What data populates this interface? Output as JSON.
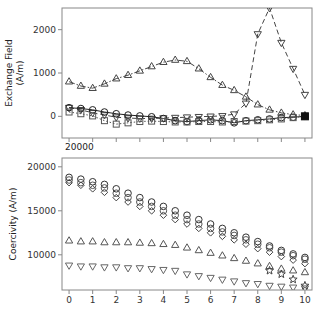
{
  "chart_data": [
    {
      "type": "line",
      "y_label": "Exchange Field\n(A/m)",
      "xlim": [
        -0.3,
        10.3
      ],
      "xticks": [
        0,
        1,
        2,
        3,
        4,
        5,
        6,
        7,
        8,
        9,
        10
      ],
      "ylim": [
        -500,
        2500
      ],
      "yticks": [
        0,
        1000,
        2000
      ],
      "tick_labels": "y",
      "annotations": [
        {
          "text": "20000"
        }
      ],
      "series": [
        {
          "color": "#444444",
          "marker": "triangle-up",
          "line_style": "dashdot",
          "x": [
            0.0,
            0.5,
            1.0,
            1.5,
            2.0,
            2.5,
            3.0,
            3.5,
            4.0,
            4.5,
            5.0,
            5.5,
            6.0,
            6.5,
            7.0,
            7.5,
            8.0,
            8.5,
            9.0,
            9.5,
            10.0
          ],
          "values": [
            800,
            700,
            650,
            750,
            870,
            950,
            1050,
            1150,
            1250,
            1300,
            1270,
            1100,
            900,
            720,
            600,
            450,
            270,
            150,
            80,
            40,
            20
          ]
        },
        {
          "color": "#444444",
          "marker": "triangle-down",
          "line_style": "dashed",
          "x": [
            0.0,
            0.5,
            1.0,
            1.5,
            2.0,
            2.5,
            3.0,
            3.5,
            4.0,
            4.5,
            5.0,
            5.5,
            6.0,
            6.5,
            7.0,
            7.5,
            8.0,
            8.5,
            9.0,
            9.5,
            10.0
          ],
          "values": [
            200,
            150,
            80,
            30,
            -20,
            -40,
            -50,
            -50,
            -40,
            -30,
            -20,
            -10,
            0,
            10,
            50,
            300,
            1900,
            2500,
            1700,
            1100,
            500
          ]
        },
        {
          "color": "#222222",
          "marker": "circle",
          "line_style": "solid",
          "x": [
            0.0,
            0.5,
            1.0,
            1.5,
            2.0,
            2.5,
            3.0,
            3.5,
            4.0,
            4.5,
            5.0,
            5.5,
            6.0,
            6.5,
            7.0,
            7.5,
            8.0,
            8.5,
            9.0,
            9.5,
            10.0
          ],
          "values": [
            200,
            180,
            150,
            100,
            60,
            30,
            10,
            -10,
            -50,
            -100,
            -120,
            -100,
            -80,
            -100,
            -150,
            -100,
            -80,
            -60,
            -30,
            -20,
            0
          ]
        },
        {
          "color": "#555555",
          "marker": "square",
          "line_style": "dotted",
          "x": [
            0.0,
            0.5,
            1.0,
            1.5,
            2.0,
            2.5,
            3.0,
            3.5,
            4.0,
            4.5,
            5.0,
            5.5,
            6.0,
            6.5,
            7.0,
            7.5,
            8.0,
            8.5,
            9.0,
            9.5,
            10.0
          ],
          "values": [
            100,
            60,
            10,
            -100,
            -180,
            -150,
            -120,
            -110,
            -120,
            -130,
            -130,
            -120,
            -120,
            -130,
            -120,
            -110,
            -100,
            -80,
            -60,
            -30,
            0
          ]
        },
        {
          "color": "#111111",
          "marker": "filled-square",
          "line_style": "none",
          "x": [
            10.0
          ],
          "values": [
            0
          ]
        }
      ]
    },
    {
      "type": "scatter",
      "y_label": "Coercivity (A/m)",
      "xlim": [
        -0.3,
        10.3
      ],
      "xticks": [
        0,
        1,
        2,
        3,
        4,
        5,
        6,
        7,
        8,
        9,
        10
      ],
      "ylim": [
        6000,
        21000
      ],
      "yticks": [
        10000,
        15000,
        20000
      ],
      "series": [
        {
          "color": "#333333",
          "marker": "circle",
          "x": [
            0.0,
            0.5,
            1.0,
            1.5,
            2.0,
            2.5,
            3.0,
            3.5,
            4.0,
            4.5,
            5.0,
            5.5,
            6.0,
            6.5,
            7.0,
            7.5,
            8.0,
            8.5,
            9.0,
            9.5,
            10.0
          ],
          "values": [
            18800,
            18600,
            18300,
            18000,
            17500,
            17000,
            16500,
            16000,
            15500,
            15000,
            14500,
            14000,
            13500,
            13000,
            12500,
            12000,
            11500,
            11000,
            10500,
            10100,
            9700
          ]
        },
        {
          "color": "#555555",
          "marker": "circle",
          "x": [
            0.0,
            0.5,
            1.0,
            1.5,
            2.0,
            2.5,
            3.0,
            3.5,
            4.0,
            4.5,
            5.0,
            5.5,
            6.0,
            6.5,
            7.0,
            7.5,
            8.0,
            8.5,
            9.0,
            9.5,
            10.0
          ],
          "values": [
            18500,
            18200,
            17900,
            17600,
            17000,
            16500,
            16000,
            15500,
            15000,
            14500,
            14000,
            13500,
            13000,
            12600,
            12200,
            11700,
            11200,
            10800,
            10300,
            9900,
            9500
          ]
        },
        {
          "color": "#444444",
          "marker": "diamond",
          "x": [
            0.0,
            0.5,
            1.0,
            1.5,
            2.0,
            2.5,
            3.0,
            3.5,
            4.0,
            4.5,
            5.0,
            5.5,
            6.0,
            6.5,
            7.0,
            7.5,
            8.0,
            8.5,
            9.0,
            9.5,
            10.0
          ],
          "values": [
            18200,
            17900,
            17500,
            17100,
            16500,
            16000,
            15500,
            15000,
            14500,
            14000,
            13500,
            13000,
            12500,
            12100,
            11700,
            11200,
            10700,
            10300,
            9800,
            9400,
            9000
          ]
        },
        {
          "color": "#555555",
          "marker": "triangle-up",
          "x": [
            0.0,
            0.5,
            1.0,
            1.5,
            2.0,
            2.5,
            3.0,
            3.5,
            4.0,
            4.5,
            5.0,
            5.5,
            6.0,
            6.5,
            7.0,
            7.5,
            8.0,
            8.5,
            9.0,
            9.5,
            10.0
          ],
          "values": [
            11600,
            11500,
            11500,
            11400,
            11400,
            11400,
            11350,
            11300,
            11200,
            11100,
            10800,
            10500,
            10200,
            9900,
            9600,
            9300,
            9000,
            8700,
            8400,
            8200,
            8000
          ]
        },
        {
          "color": "#666666",
          "marker": "triangle-down",
          "x": [
            0.0,
            0.5,
            1.0,
            1.5,
            2.0,
            2.5,
            3.0,
            3.5,
            4.0,
            4.5,
            5.0,
            5.5,
            6.0,
            6.5,
            7.0,
            7.5,
            8.0,
            8.5,
            9.0,
            9.5,
            10.0
          ],
          "values": [
            8800,
            8700,
            8700,
            8600,
            8600,
            8500,
            8500,
            8400,
            8300,
            8200,
            7800,
            7600,
            7400,
            7200,
            7000,
            6800,
            6700,
            6500,
            6400,
            6300,
            6200
          ]
        },
        {
          "color": "#444444",
          "marker": "star",
          "x": [
            8.5,
            9.0,
            9.5,
            10.0
          ],
          "values": [
            8200,
            7800,
            7200,
            6500
          ]
        }
      ]
    }
  ]
}
